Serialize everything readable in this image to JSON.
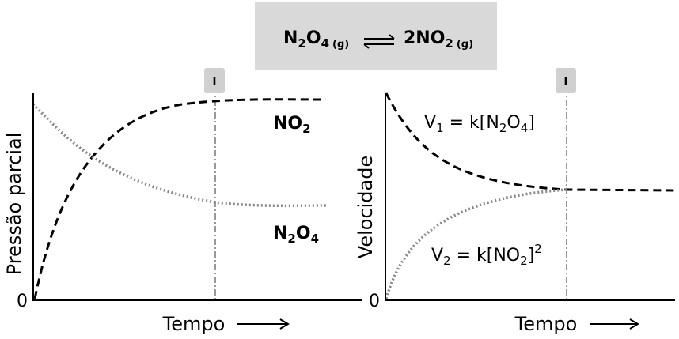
{
  "equation": {
    "reactant": [
      "N",
      "2",
      "O",
      "4",
      "(g)"
    ],
    "product": [
      "2NO",
      "2",
      "(g)"
    ]
  },
  "left_panel": {
    "y_label": "Pressão parcial",
    "x_label": "Tempo",
    "origin": "0",
    "marker": "I",
    "no2_label": [
      "NO",
      "2"
    ],
    "n2o4_label": [
      "N",
      "2",
      "O",
      "4"
    ]
  },
  "right_panel": {
    "y_label": "Velocidade",
    "x_label": "Tempo",
    "origin": "0",
    "marker": "I",
    "v1_label": [
      "V",
      "1",
      " = k[N",
      "2",
      "O",
      "4",
      "]"
    ],
    "v2_label": [
      "V",
      "2",
      " = k[NO",
      "2",
      "]",
      "2"
    ]
  }
}
